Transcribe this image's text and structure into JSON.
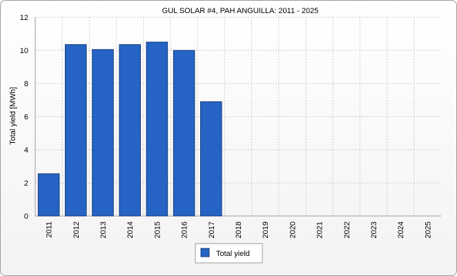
{
  "chart_data": {
    "type": "bar",
    "title": "GUL SOLAR #4, PAH ANGUILLA: 2011 - 2025",
    "xlabel": "",
    "ylabel": "Total yield [MWh]",
    "categories": [
      "2011",
      "2012",
      "2013",
      "2014",
      "2015",
      "2016",
      "2017",
      "2018",
      "2019",
      "2020",
      "2021",
      "2022",
      "2023",
      "2024",
      "2025"
    ],
    "series": [
      {
        "name": "Total yield",
        "values": [
          2.55,
          10.35,
          10.05,
          10.35,
          10.5,
          10.0,
          6.9,
          null,
          null,
          null,
          null,
          null,
          null,
          null,
          null
        ]
      }
    ],
    "ylim": [
      0,
      12
    ],
    "yticks": [
      0,
      2,
      4,
      6,
      8,
      10,
      12
    ],
    "grid": true,
    "legend": "bottom-center",
    "colors": {
      "bar_fill": "#2563c4",
      "bar_stroke": "#153a78",
      "grid": "#c8c8c8"
    }
  }
}
